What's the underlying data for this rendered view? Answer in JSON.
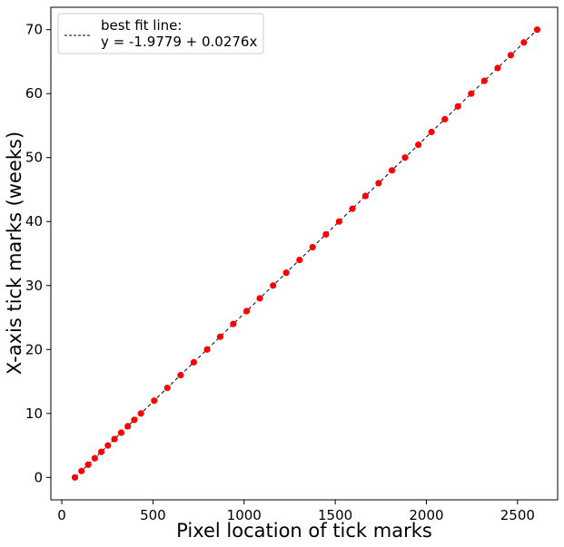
{
  "chart_data": {
    "type": "scatter",
    "title": "",
    "xlabel": "Pixel location of tick marks",
    "ylabel": "X-axis tick marks (weeks)",
    "xlim": [
      -60,
      2720
    ],
    "ylim": [
      -3.5,
      73.5
    ],
    "xticks": [
      0,
      500,
      1000,
      1500,
      2000,
      2500
    ],
    "yticks": [
      0,
      10,
      20,
      30,
      40,
      50,
      60,
      70
    ],
    "grid": false,
    "legend": {
      "placement": "top-left",
      "entries": [
        {
          "line1": "best fit line:",
          "line2": "y = -1.9779 + 0.0276x",
          "style": "dashed",
          "color": "#000000"
        }
      ]
    },
    "series": [
      {
        "type": "scatter",
        "color": "#ff0000",
        "points": [
          {
            "x": 72,
            "y": 0
          },
          {
            "x": 108,
            "y": 1
          },
          {
            "x": 145,
            "y": 2
          },
          {
            "x": 181,
            "y": 3
          },
          {
            "x": 217,
            "y": 4
          },
          {
            "x": 253,
            "y": 5
          },
          {
            "x": 289,
            "y": 6
          },
          {
            "x": 326,
            "y": 7
          },
          {
            "x": 362,
            "y": 8
          },
          {
            "x": 398,
            "y": 9
          },
          {
            "x": 434,
            "y": 10
          },
          {
            "x": 507,
            "y": 12
          },
          {
            "x": 579,
            "y": 14
          },
          {
            "x": 652,
            "y": 16
          },
          {
            "x": 724,
            "y": 18
          },
          {
            "x": 797,
            "y": 20
          },
          {
            "x": 869,
            "y": 22
          },
          {
            "x": 941,
            "y": 24
          },
          {
            "x": 1014,
            "y": 26
          },
          {
            "x": 1086,
            "y": 28
          },
          {
            "x": 1159,
            "y": 30
          },
          {
            "x": 1231,
            "y": 32
          },
          {
            "x": 1304,
            "y": 34
          },
          {
            "x": 1376,
            "y": 36
          },
          {
            "x": 1449,
            "y": 38
          },
          {
            "x": 1521,
            "y": 40
          },
          {
            "x": 1594,
            "y": 42
          },
          {
            "x": 1666,
            "y": 44
          },
          {
            "x": 1738,
            "y": 46
          },
          {
            "x": 1811,
            "y": 48
          },
          {
            "x": 1883,
            "y": 50
          },
          {
            "x": 1956,
            "y": 52
          },
          {
            "x": 2028,
            "y": 54
          },
          {
            "x": 2101,
            "y": 56
          },
          {
            "x": 2173,
            "y": 58
          },
          {
            "x": 2246,
            "y": 60
          },
          {
            "x": 2318,
            "y": 62
          },
          {
            "x": 2391,
            "y": 64
          },
          {
            "x": 2463,
            "y": 66
          },
          {
            "x": 2535,
            "y": 68
          },
          {
            "x": 2608,
            "y": 70
          }
        ]
      },
      {
        "type": "line",
        "style": "dashed",
        "color": "#000000",
        "intercept": -1.9779,
        "slope": 0.0276,
        "x_range": [
          72,
          2608
        ]
      }
    ]
  }
}
